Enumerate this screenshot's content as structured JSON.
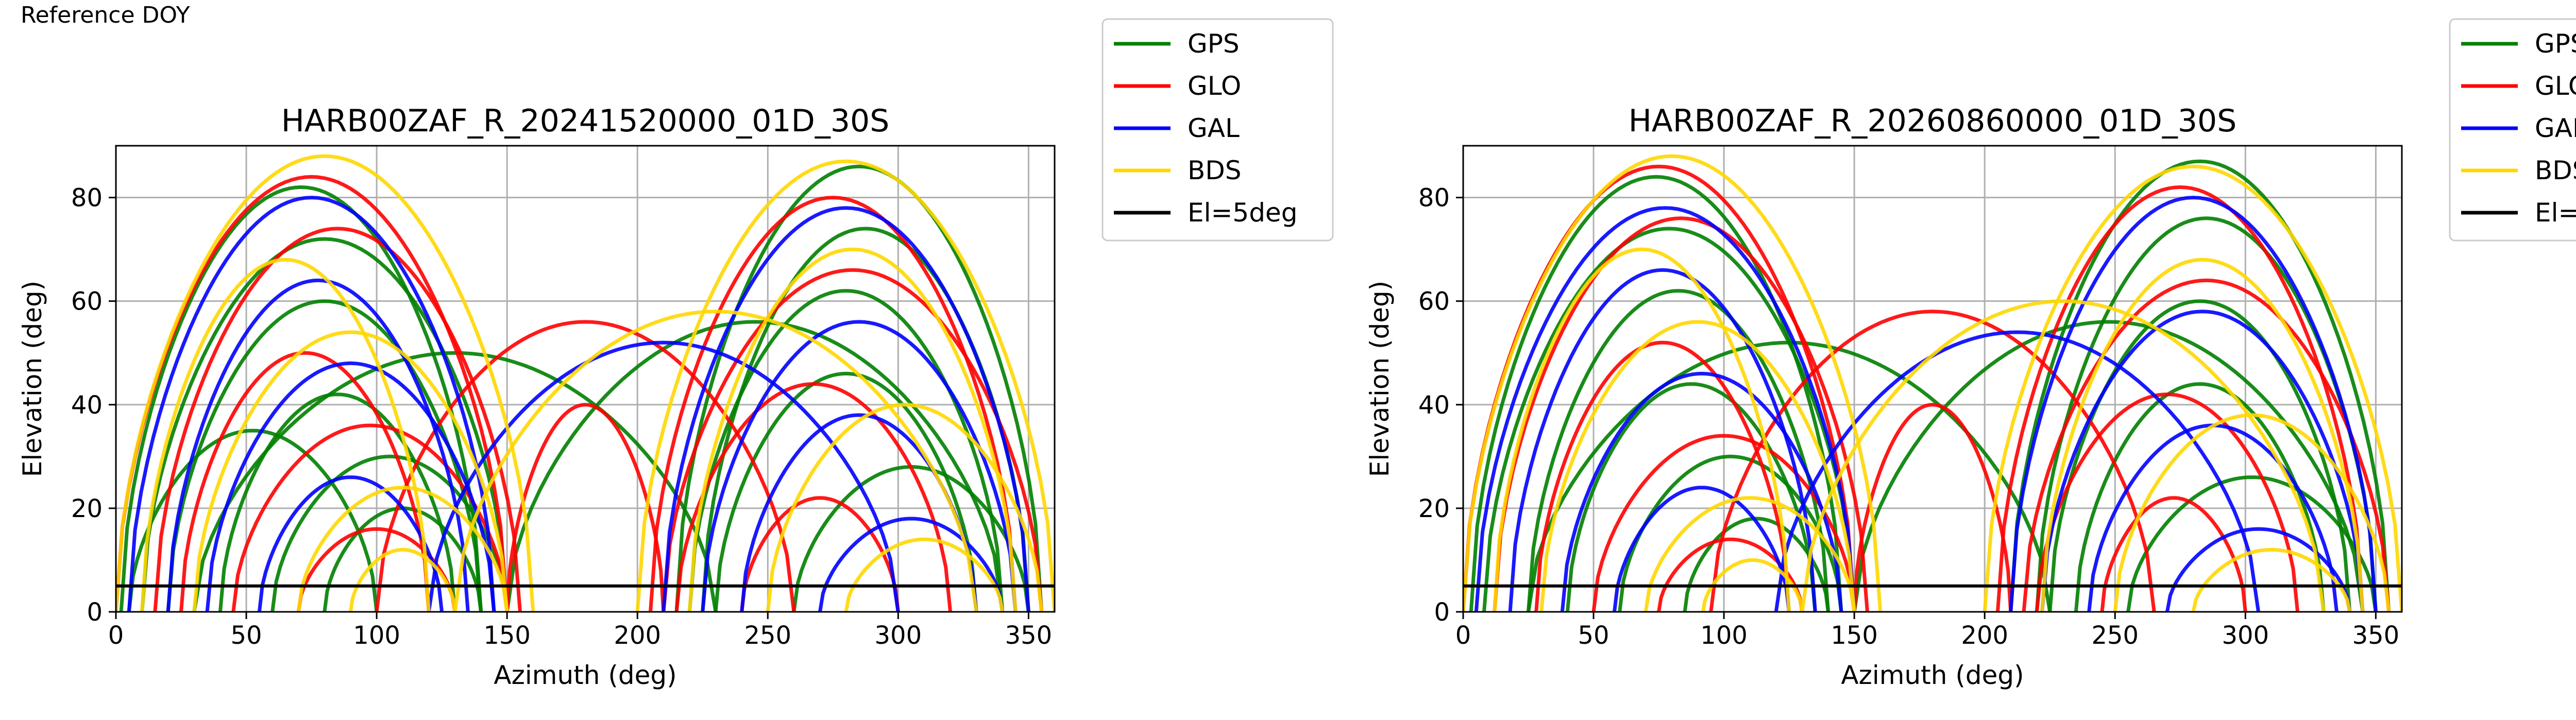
{
  "page_label": "Reference DOY",
  "legend": [
    {
      "label": "GPS",
      "color": "#008000"
    },
    {
      "label": "GLO",
      "color": "#ff0000"
    },
    {
      "label": "GAL",
      "color": "#0000ff"
    },
    {
      "label": "BDS",
      "color": "#ffd700"
    },
    {
      "label": "El=5deg",
      "color": "#000000"
    }
  ],
  "chart_data": [
    {
      "type": "line",
      "title": "HARB00ZAF_R_20241520000_01D_30S",
      "xlabel": "Azimuth (deg)",
      "ylabel": "Elevation (deg)",
      "xlim": [
        0,
        360
      ],
      "ylim": [
        0,
        90
      ],
      "xticks": [
        0,
        50,
        100,
        150,
        200,
        250,
        300,
        350
      ],
      "yticks": [
        0,
        20,
        40,
        60,
        80
      ],
      "grid": true,
      "legend_position": "outside-right",
      "reference_line": {
        "name": "El=5deg",
        "y": 5,
        "color": "#000000"
      },
      "series": [
        {
          "name": "GPS",
          "color": "#008000",
          "tracks": [
            {
              "az0": 2,
              "az1": 140,
              "peak": 82
            },
            {
              "az0": 10,
              "az1": 150,
              "peak": 72
            },
            {
              "az0": 20,
              "az1": 140,
              "peak": 60
            },
            {
              "az0": 40,
              "az1": 130,
              "peak": 42
            },
            {
              "az0": 60,
              "az1": 150,
              "peak": 30
            },
            {
              "az0": 80,
              "az1": 140,
              "peak": 20
            },
            {
              "az0": 5,
              "az1": 100,
              "peak": 35
            },
            {
              "az0": 215,
              "az1": 355,
              "peak": 86
            },
            {
              "az0": 225,
              "az1": 350,
              "peak": 74
            },
            {
              "az0": 220,
              "az1": 340,
              "peak": 62
            },
            {
              "az0": 230,
              "az1": 330,
              "peak": 46
            },
            {
              "az0": 260,
              "az1": 350,
              "peak": 28
            },
            {
              "az0": 150,
              "az1": 340,
              "peak": 56
            },
            {
              "az0": 30,
              "az1": 230,
              "peak": 50
            }
          ]
        },
        {
          "name": "GLO",
          "color": "#ff0000",
          "tracks": [
            {
              "az0": 0,
              "az1": 150,
              "peak": 84
            },
            {
              "az0": 15,
              "az1": 155,
              "peak": 74
            },
            {
              "az0": 25,
              "az1": 120,
              "peak": 50
            },
            {
              "az0": 45,
              "az1": 150,
              "peak": 36
            },
            {
              "az0": 70,
              "az1": 130,
              "peak": 16
            },
            {
              "az0": 205,
              "az1": 345,
              "peak": 80
            },
            {
              "az0": 210,
              "az1": 355,
              "peak": 66
            },
            {
              "az0": 215,
              "az1": 320,
              "peak": 44
            },
            {
              "az0": 240,
              "az1": 300,
              "peak": 22
            },
            {
              "az0": 150,
              "az1": 210,
              "peak": 40
            },
            {
              "az0": 100,
              "az1": 260,
              "peak": 56
            }
          ]
        },
        {
          "name": "GAL",
          "color": "#0000ff",
          "tracks": [
            {
              "az0": 5,
              "az1": 145,
              "peak": 80
            },
            {
              "az0": 20,
              "az1": 135,
              "peak": 64
            },
            {
              "az0": 35,
              "az1": 145,
              "peak": 48
            },
            {
              "az0": 55,
              "az1": 125,
              "peak": 26
            },
            {
              "az0": 210,
              "az1": 350,
              "peak": 78
            },
            {
              "az0": 225,
              "az1": 345,
              "peak": 56
            },
            {
              "az0": 240,
              "az1": 330,
              "peak": 38
            },
            {
              "az0": 270,
              "az1": 340,
              "peak": 18
            },
            {
              "az0": 120,
              "az1": 300,
              "peak": 52
            }
          ]
        },
        {
          "name": "BDS",
          "color": "#ffd700",
          "tracks": [
            {
              "az0": 0,
              "az1": 160,
              "peak": 88
            },
            {
              "az0": 10,
              "az1": 120,
              "peak": 68
            },
            {
              "az0": 30,
              "az1": 150,
              "peak": 54
            },
            {
              "az0": 70,
              "az1": 150,
              "peak": 24
            },
            {
              "az0": 90,
              "az1": 130,
              "peak": 12
            },
            {
              "az0": 200,
              "az1": 360,
              "peak": 87
            },
            {
              "az0": 220,
              "az1": 345,
              "peak": 70
            },
            {
              "az0": 250,
              "az1": 355,
              "peak": 40
            },
            {
              "az0": 280,
              "az1": 340,
              "peak": 14
            },
            {
              "az0": 130,
              "az1": 330,
              "peak": 58
            }
          ]
        }
      ]
    },
    {
      "type": "line",
      "title": "HARB00ZAF_R_20260860000_01D_30S",
      "xlabel": "Azimuth (deg)",
      "ylabel": "Elevation (deg)",
      "xlim": [
        0,
        360
      ],
      "ylim": [
        0,
        90
      ],
      "xticks": [
        0,
        50,
        100,
        150,
        200,
        250,
        300,
        350
      ],
      "yticks": [
        0,
        20,
        40,
        60,
        80
      ],
      "grid": true,
      "legend_position": "outside-right",
      "reference_line": {
        "name": "El=5deg",
        "y": 5,
        "color": "#000000"
      },
      "series": [
        {
          "name": "GPS",
          "color": "#008000",
          "tracks": [
            {
              "az0": 3,
              "az1": 145,
              "peak": 84
            },
            {
              "az0": 8,
              "az1": 150,
              "peak": 74
            },
            {
              "az0": 25,
              "az1": 140,
              "peak": 62
            },
            {
              "az0": 40,
              "az1": 135,
              "peak": 44
            },
            {
              "az0": 60,
              "az1": 145,
              "peak": 30
            },
            {
              "az0": 85,
              "az1": 140,
              "peak": 18
            },
            {
              "az0": 210,
              "az1": 355,
              "peak": 87
            },
            {
              "az0": 220,
              "az1": 350,
              "peak": 76
            },
            {
              "az0": 225,
              "az1": 340,
              "peak": 60
            },
            {
              "az0": 235,
              "az1": 330,
              "peak": 44
            },
            {
              "az0": 255,
              "az1": 350,
              "peak": 26
            },
            {
              "az0": 150,
              "az1": 345,
              "peak": 56
            },
            {
              "az0": 25,
              "az1": 225,
              "peak": 52
            }
          ]
        },
        {
          "name": "GLO",
          "color": "#ff0000",
          "tracks": [
            {
              "az0": 0,
              "az1": 150,
              "peak": 86
            },
            {
              "az0": 12,
              "az1": 155,
              "peak": 76
            },
            {
              "az0": 28,
              "az1": 125,
              "peak": 52
            },
            {
              "az0": 50,
              "az1": 150,
              "peak": 34
            },
            {
              "az0": 75,
              "az1": 130,
              "peak": 14
            },
            {
              "az0": 205,
              "az1": 345,
              "peak": 82
            },
            {
              "az0": 215,
              "az1": 355,
              "peak": 64
            },
            {
              "az0": 220,
              "az1": 320,
              "peak": 42
            },
            {
              "az0": 245,
              "az1": 300,
              "peak": 22
            },
            {
              "az0": 150,
              "az1": 210,
              "peak": 40
            },
            {
              "az0": 95,
              "az1": 265,
              "peak": 58
            }
          ]
        },
        {
          "name": "GAL",
          "color": "#0000ff",
          "tracks": [
            {
              "az0": 5,
              "az1": 150,
              "peak": 78
            },
            {
              "az0": 18,
              "az1": 135,
              "peak": 66
            },
            {
              "az0": 38,
              "az1": 145,
              "peak": 46
            },
            {
              "az0": 58,
              "az1": 125,
              "peak": 24
            },
            {
              "az0": 210,
              "az1": 350,
              "peak": 80
            },
            {
              "az0": 222,
              "az1": 345,
              "peak": 58
            },
            {
              "az0": 240,
              "az1": 335,
              "peak": 36
            },
            {
              "az0": 270,
              "az1": 340,
              "peak": 16
            },
            {
              "az0": 120,
              "az1": 305,
              "peak": 54
            }
          ]
        },
        {
          "name": "BDS",
          "color": "#ffd700",
          "tracks": [
            {
              "az0": 0,
              "az1": 160,
              "peak": 88
            },
            {
              "az0": 12,
              "az1": 125,
              "peak": 70
            },
            {
              "az0": 30,
              "az1": 150,
              "peak": 56
            },
            {
              "az0": 70,
              "az1": 150,
              "peak": 22
            },
            {
              "az0": 92,
              "az1": 130,
              "peak": 10
            },
            {
              "az0": 200,
              "az1": 360,
              "peak": 86
            },
            {
              "az0": 222,
              "az1": 345,
              "peak": 68
            },
            {
              "az0": 250,
              "az1": 355,
              "peak": 38
            },
            {
              "az0": 280,
              "az1": 340,
              "peak": 12
            },
            {
              "az0": 130,
              "az1": 330,
              "peak": 60
            }
          ]
        }
      ]
    }
  ]
}
